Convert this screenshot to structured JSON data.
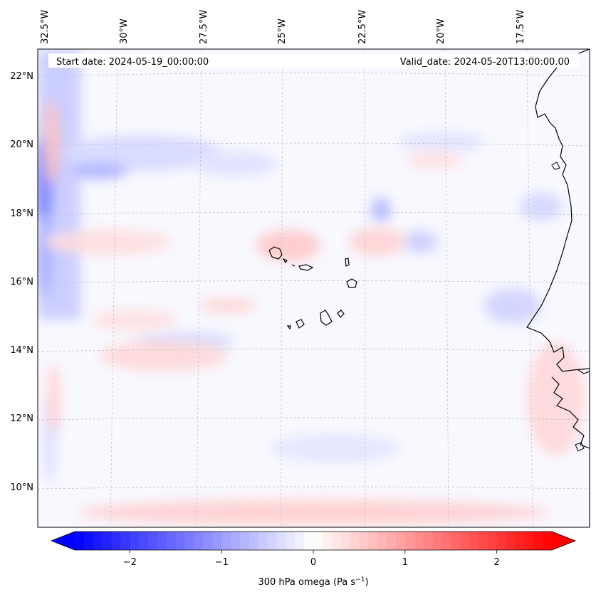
{
  "map": {
    "start_label": "Start date: 2024-05-19_00:00:00",
    "valid_label": "Valid_date: 2024-05-20T13:00:00.00",
    "lon_labels": [
      "32.5°W",
      "30°W",
      "27.5°W",
      "25°W",
      "22.5°W",
      "20°W",
      "17.5°W"
    ],
    "lat_labels": [
      "22°N",
      "20°N",
      "18°N",
      "16°N",
      "14°N",
      "12°N",
      "10°N"
    ],
    "field_description": "300 hPa vertical velocity (omega) contour field over the eastern tropical Atlantic around the Cabo Verde islands, with West African coastline at right"
  },
  "colorbar": {
    "ticks": [
      "−2",
      "−1",
      "0",
      "1",
      "2"
    ],
    "label_main": "300 hPa omega (Pa s",
    "label_sup": "−1",
    "label_end": ")",
    "vmin": -2.6,
    "vmax": 2.6,
    "tick_values": [
      -2,
      -1,
      0,
      1,
      2
    ]
  },
  "colors": {
    "negative": "#0000ff",
    "zero": "#ffffff",
    "positive": "#ff0000",
    "coastline": "#000000",
    "gridline": "#bbbbbb"
  }
}
